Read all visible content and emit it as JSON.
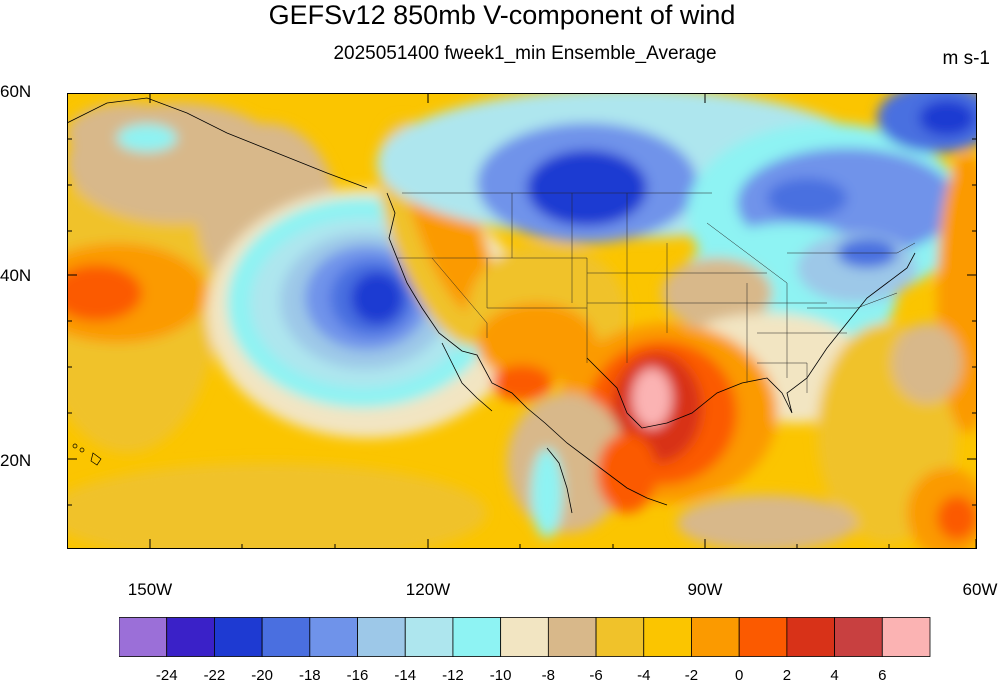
{
  "title": "GEFSv12 850mb V-component of wind",
  "subtitle": "2025051400 fweek1_min Ensemble_Average",
  "units": "m s-1",
  "lat_labels": [
    "60N",
    "40N",
    "20N"
  ],
  "lon_labels": [
    "150W",
    "120W",
    "90W",
    "60W"
  ],
  "colorbar": {
    "colors": [
      "#9b6fd8",
      "#3a21c8",
      "#1e3ad2",
      "#4a6fe0",
      "#6f93ea",
      "#9dc8e8",
      "#aee6ee",
      "#8ef3f3",
      "#f2e5c2",
      "#d8b88a",
      "#f0c22a",
      "#fbc500",
      "#fb9a00",
      "#fb5a00",
      "#d83218",
      "#c84040",
      "#fbb3b3"
    ],
    "labels": [
      "-24",
      "-22",
      "-20",
      "-18",
      "-16",
      "-14",
      "-12",
      "-10",
      "-8",
      "-6",
      "-4",
      "-2",
      "0",
      "2",
      "4",
      "6"
    ]
  }
}
